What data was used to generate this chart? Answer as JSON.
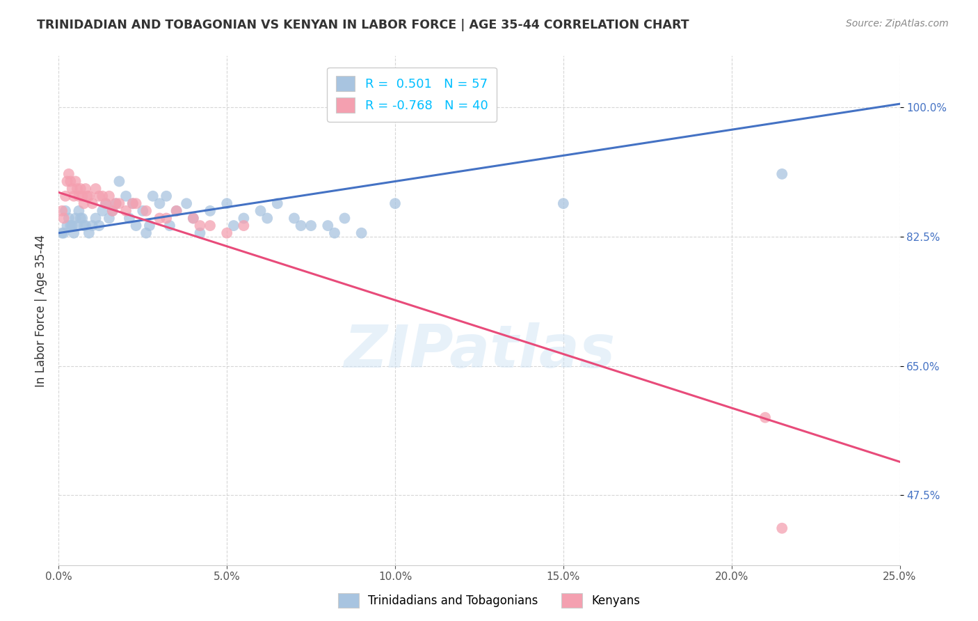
{
  "title": "TRINIDADIAN AND TOBAGONIAN VS KENYAN IN LABOR FORCE | AGE 35-44 CORRELATION CHART",
  "source": "Source: ZipAtlas.com",
  "xlabel_ticks": [
    0.0,
    5.0,
    10.0,
    15.0,
    20.0,
    25.0
  ],
  "ylabel_ticks": [
    47.5,
    65.0,
    82.5,
    100.0
  ],
  "ylabel_label": "In Labor Force | Age 35-44",
  "xlim": [
    0.0,
    25.0
  ],
  "ylim": [
    38.0,
    107.0
  ],
  "blue_scatter_x": [
    0.1,
    0.15,
    0.2,
    0.25,
    0.3,
    0.35,
    0.4,
    0.45,
    0.5,
    0.55,
    0.6,
    0.65,
    0.7,
    0.75,
    0.8,
    0.9,
    1.0,
    1.1,
    1.2,
    1.3,
    1.4,
    1.5,
    1.6,
    1.8,
    2.0,
    2.2,
    2.5,
    2.8,
    3.0,
    3.2,
    3.5,
    3.8,
    4.0,
    4.5,
    5.0,
    5.5,
    6.0,
    6.5,
    7.0,
    7.5,
    8.0,
    8.5,
    9.0,
    2.3,
    2.6,
    3.3,
    4.2,
    5.2,
    6.2,
    7.2,
    8.2,
    1.7,
    2.1,
    2.7,
    10.0,
    15.0,
    21.5
  ],
  "blue_scatter_y": [
    83,
    83,
    86,
    84,
    85,
    84,
    84,
    83,
    85,
    84,
    86,
    85,
    85,
    84,
    84,
    83,
    84,
    85,
    84,
    86,
    87,
    85,
    86,
    90,
    88,
    87,
    86,
    88,
    87,
    88,
    86,
    87,
    85,
    86,
    87,
    85,
    86,
    87,
    85,
    84,
    84,
    85,
    83,
    84,
    83,
    84,
    83,
    84,
    85,
    84,
    83,
    87,
    85,
    84,
    87,
    87,
    91
  ],
  "pink_scatter_x": [
    0.1,
    0.15,
    0.2,
    0.25,
    0.3,
    0.35,
    0.4,
    0.45,
    0.5,
    0.55,
    0.6,
    0.65,
    0.7,
    0.75,
    0.8,
    0.9,
    1.0,
    1.1,
    1.2,
    1.3,
    1.4,
    1.5,
    1.6,
    1.8,
    2.0,
    2.3,
    2.6,
    3.0,
    3.5,
    4.0,
    4.5,
    5.0,
    3.2,
    4.2,
    5.5,
    21.0,
    21.5,
    2.2,
    1.7,
    0.85
  ],
  "pink_scatter_y": [
    86,
    85,
    88,
    90,
    91,
    90,
    89,
    88,
    90,
    89,
    88,
    89,
    88,
    87,
    89,
    88,
    87,
    89,
    88,
    88,
    87,
    88,
    86,
    87,
    86,
    87,
    86,
    85,
    86,
    85,
    84,
    83,
    85,
    84,
    84,
    58,
    43,
    87,
    87,
    88
  ],
  "blue_line_x0": 0.0,
  "blue_line_x1": 25.0,
  "blue_line_y0": 83.0,
  "blue_line_y1": 100.5,
  "pink_line_x0": 0.0,
  "pink_line_x1": 25.0,
  "pink_line_y0": 88.5,
  "pink_line_y1": 52.0,
  "blue_line_color": "#4472C4",
  "pink_line_color": "#E84B7A",
  "blue_dot_color": "#a8c4e0",
  "pink_dot_color": "#f4a0b0",
  "dot_size": 130,
  "dot_alpha": 0.75,
  "watermark_text": "ZIPatlas",
  "background_color": "#ffffff",
  "grid_color": "#cccccc",
  "title_color": "#333333",
  "source_color": "#888888",
  "tick_color_right": "#4472C4",
  "tick_color_bottom": "#555555",
  "legend_blue_label": "R =  0.501   N = 57",
  "legend_pink_label": "R = -0.768   N = 40",
  "legend_text_color": "#00BFFF",
  "bottom_legend_blue": "Trinidadians and Tobagonians",
  "bottom_legend_pink": "Kenyans"
}
